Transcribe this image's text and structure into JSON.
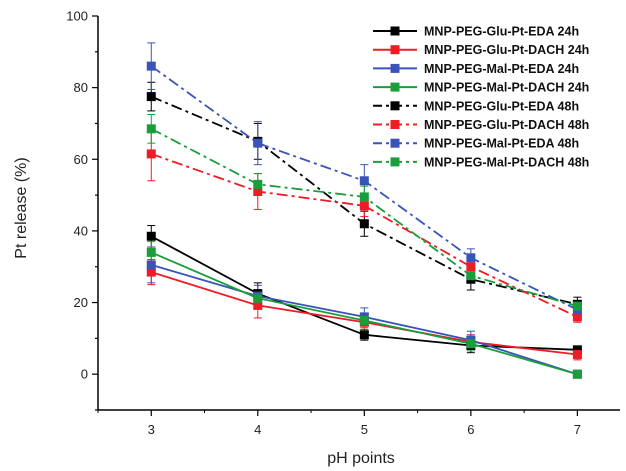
{
  "chart_data": {
    "type": "line",
    "title": "",
    "xlabel": "pH points",
    "ylabel": "Pt release (%)",
    "x": [
      3,
      4,
      5,
      6,
      7
    ],
    "x_ticks": [
      "3",
      "4",
      "5",
      "6",
      "7"
    ],
    "xlim": [
      2.5,
      7.4
    ],
    "ylim": [
      -10,
      100
    ],
    "y_ticks": [
      0,
      20,
      40,
      60,
      80,
      100
    ],
    "grid": false,
    "legend_position": "top-right",
    "series": [
      {
        "name": "MNP-PEG-Glu-Pt-EDA 24h",
        "color": "#000000",
        "dash": "solid",
        "values": [
          38.5,
          22.5,
          11,
          8,
          6.8
        ],
        "errors": [
          3,
          3,
          1.5,
          2,
          1
        ]
      },
      {
        "name": "MNP-PEG-Glu-Pt-DACH 24h",
        "color": "#ee1c24",
        "dash": "solid",
        "values": [
          28.5,
          19.2,
          14.5,
          9,
          5.5
        ],
        "errors": [
          3.5,
          3.5,
          2,
          2,
          1.5
        ]
      },
      {
        "name": "MNP-PEG-Mal-Pt-EDA 24h",
        "color": "#3a53b8",
        "dash": "solid",
        "values": [
          30.5,
          21.8,
          16,
          9.5,
          0
        ],
        "errors": [
          5,
          3,
          2.5,
          2.5,
          0
        ]
      },
      {
        "name": "MNP-PEG-Mal-Pt-DACH 24h",
        "color": "#1a9e3c",
        "dash": "solid",
        "values": [
          34,
          21.2,
          15,
          8.5,
          0
        ],
        "errors": [
          3,
          2,
          2,
          2,
          0
        ]
      },
      {
        "name": "MNP-PEG-Glu-Pt-EDA 48h",
        "color": "#000000",
        "dash": "dashdot",
        "values": [
          77.5,
          65,
          42,
          26.5,
          19.5
        ],
        "errors": [
          4,
          5,
          3.5,
          3,
          2
        ]
      },
      {
        "name": "MNP-PEG-Glu-Pt-DACH 48h",
        "color": "#ee1c24",
        "dash": "dashdot",
        "values": [
          61.5,
          51,
          47,
          30,
          16
        ],
        "errors": [
          7.5,
          5,
          3,
          2.5,
          1.5
        ]
      },
      {
        "name": "MNP-PEG-Mal-Pt-EDA  48h",
        "color": "#3a53b8",
        "dash": "dashdot",
        "values": [
          86,
          64.5,
          54,
          32.5,
          18
        ],
        "errors": [
          6.5,
          6,
          4.5,
          2.5,
          2
        ]
      },
      {
        "name": "MNP-PEG-Mal-Pt-DACH 48h",
        "color": "#1a9e3c",
        "dash": "dashdot",
        "values": [
          68.5,
          53,
          49.5,
          27.5,
          19
        ],
        "errors": [
          4,
          3,
          3,
          2,
          1.5
        ]
      }
    ]
  }
}
